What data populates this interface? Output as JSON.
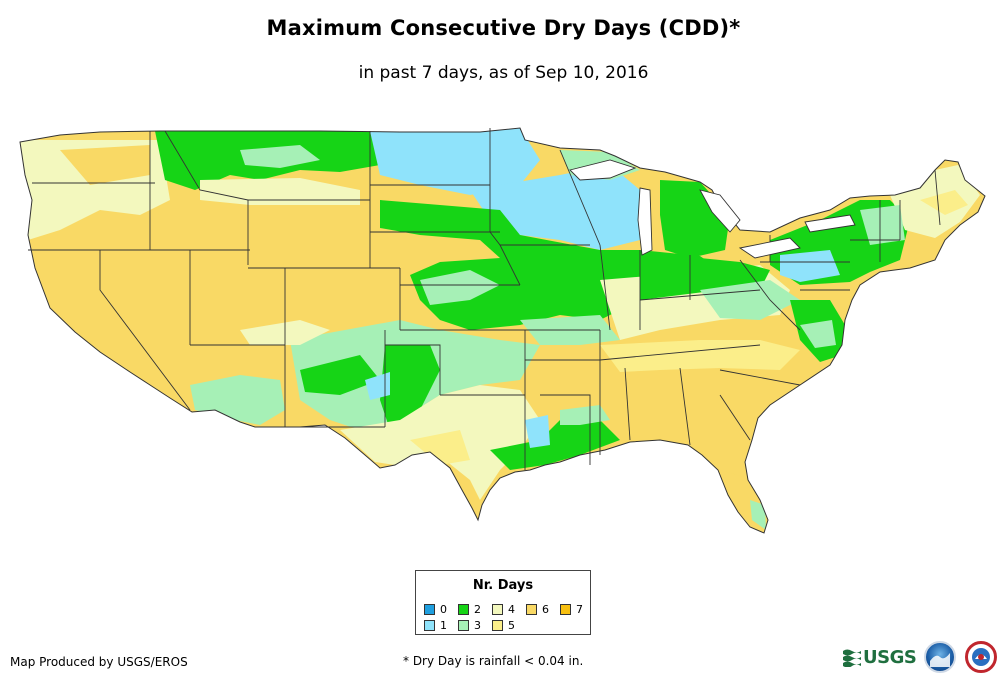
{
  "header": {
    "title": "Maximum Consecutive Dry Days (CDD)*",
    "subtitle": "in past 7 days, as of Sep 10, 2016"
  },
  "legend": {
    "title": "Nr. Days",
    "items": [
      {
        "label": "0",
        "color": "#1f9fdf"
      },
      {
        "label": "1",
        "color": "#8fe3fb"
      },
      {
        "label": "2",
        "color": "#16d416"
      },
      {
        "label": "3",
        "color": "#a6f0b6"
      },
      {
        "label": "4",
        "color": "#f3f8be"
      },
      {
        "label": "5",
        "color": "#fbee8a"
      },
      {
        "label": "6",
        "color": "#f9d965"
      },
      {
        "label": "7",
        "color": "#f8c010"
      }
    ]
  },
  "footer": {
    "producer": "Map Produced by USGS/EROS",
    "note": "* Dry Day is rainfall < 0.04 in.",
    "usgs_label": "USGS"
  },
  "icons": {
    "usgs": "usgs-logo",
    "noaa": "noaa-logo",
    "nws": "nws-logo"
  }
}
